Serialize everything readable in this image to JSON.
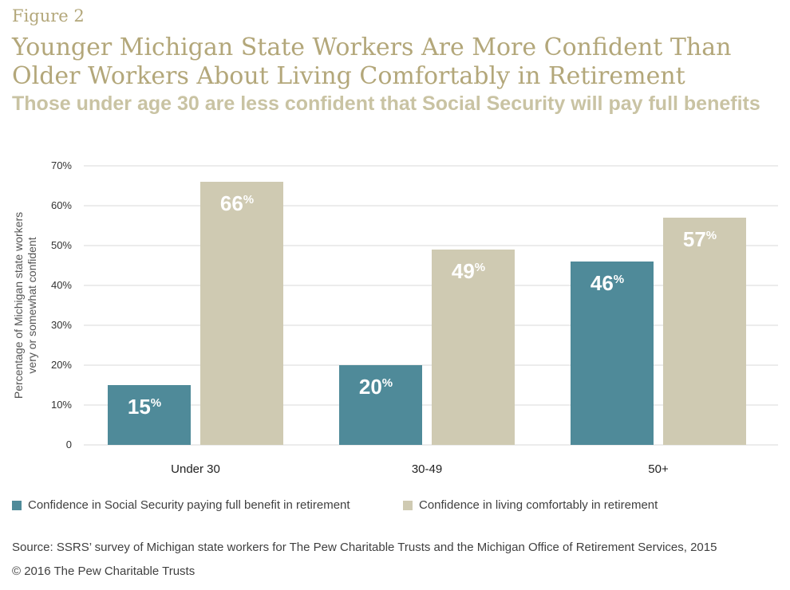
{
  "figure_label": "Figure 2",
  "title": "Younger Michigan State Workers Are More Confident Than Older Workers About Living Comfortably in Retirement",
  "subtitle": "Those under age 30 are less confident that Social Security will pay full benefits",
  "source": "Source: SSRS’ survey of Michigan state workers for The Pew Charitable Trusts and the Michigan Office of Retirement Services, 2015",
  "copyright": "© 2016 The Pew Charitable Trusts",
  "colors": {
    "series1": "#4f8a99",
    "series2": "#cfcab2",
    "title": "#b3a77a",
    "grid": "#d9d9d9"
  },
  "chart_data": {
    "type": "bar",
    "categories": [
      "Under 30",
      "30-49",
      "50+"
    ],
    "series": [
      {
        "name": "Confidence in Social Security paying full benefit in retirement",
        "values": [
          15,
          20,
          46
        ],
        "labels": [
          "15%",
          "20%",
          "46%"
        ]
      },
      {
        "name": "Confidence in living comfortably in retirement",
        "values": [
          66,
          49,
          57
        ],
        "labels": [
          "66%",
          "49%",
          "57%"
        ]
      }
    ],
    "ylabel_lines": [
      "Percentage of Michigan state workers",
      "very or somewhat confident"
    ],
    "xlabel": "",
    "ylim": [
      0,
      70
    ],
    "yticks": [
      0,
      10,
      20,
      30,
      40,
      50,
      60,
      70
    ],
    "ytick_labels": [
      "0",
      "10%",
      "20%",
      "30%",
      "40%",
      "50%",
      "60%",
      "70%"
    ],
    "grid": true,
    "legend_position": "bottom"
  }
}
